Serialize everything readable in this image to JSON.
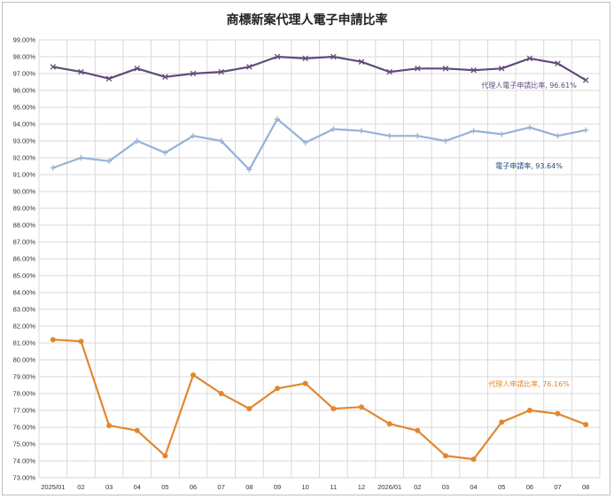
{
  "chart_data": {
    "type": "line",
    "title": "商標新案代理人電子申請比率",
    "xlabel": "",
    "ylabel": "",
    "ylim": [
      73,
      99
    ],
    "y_tick_step": 1,
    "y_tick_suffix": "%",
    "y_tick_decimals": 2,
    "grid": true,
    "categories": [
      "2025/01",
      "02",
      "03",
      "04",
      "05",
      "06",
      "07",
      "08",
      "09",
      "10",
      "11",
      "12",
      "2026/01",
      "02",
      "03",
      "04",
      "05",
      "06",
      "07",
      "08"
    ],
    "series": [
      {
        "name": "代理人電子申請比率",
        "color": "#604a7b",
        "marker": "x",
        "label_text": "代理人電子申請比率, 96.61%",
        "values": [
          97.4,
          97.1,
          96.7,
          97.3,
          96.8,
          97.0,
          97.1,
          97.4,
          98.0,
          97.9,
          98.0,
          97.7,
          97.1,
          97.3,
          97.3,
          97.2,
          97.3,
          97.9,
          97.6,
          96.61
        ]
      },
      {
        "name": "電子申請率",
        "color": "#95b3d7",
        "label_color": "#1f497d",
        "marker": "plus",
        "label_text": "電子申請率, 93.64%",
        "values": [
          91.4,
          92.0,
          91.8,
          93.0,
          92.3,
          93.3,
          93.0,
          91.3,
          94.3,
          92.9,
          93.7,
          93.6,
          93.3,
          93.3,
          93.0,
          93.6,
          93.4,
          93.8,
          93.3,
          93.64
        ]
      },
      {
        "name": "代理人申請比率",
        "color": "#e1882f",
        "marker": "circle",
        "label_text": "代理人申請比率, 76.16%",
        "values": [
          81.2,
          81.1,
          76.1,
          75.8,
          74.3,
          79.1,
          78.0,
          77.1,
          78.3,
          78.6,
          77.1,
          77.2,
          76.2,
          75.8,
          74.3,
          74.1,
          76.3,
          77.0,
          76.8,
          76.16
        ]
      }
    ]
  }
}
